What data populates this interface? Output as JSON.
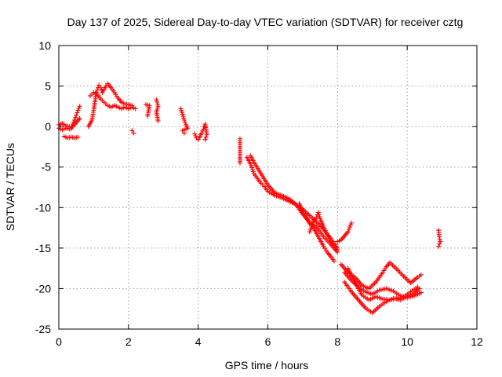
{
  "chart_data": {
    "type": "scatter",
    "title": "Day 137 of 2025, Sidereal Day-to-day VTEC variation (SDTVAR) for receiver cztg",
    "xlabel": "GPS time / hours",
    "ylabel": "SDTVAR / TECUs",
    "xlim": [
      0,
      12
    ],
    "ylim": [
      -25,
      10
    ],
    "xticks": [
      0,
      2,
      4,
      6,
      8,
      10,
      12
    ],
    "yticks": [
      -25,
      -20,
      -15,
      -10,
      -5,
      0,
      5,
      10
    ],
    "grid": true,
    "marker": "+",
    "color": "#ff0000",
    "series": [
      {
        "name": "SDTVAR",
        "segments": [
          [
            [
              0.0,
              0.2
            ],
            [
              0.1,
              0.4
            ],
            [
              0.2,
              0.1
            ],
            [
              0.3,
              0.0
            ],
            [
              0.35,
              -0.3
            ],
            [
              0.4,
              0.3
            ],
            [
              0.45,
              0.8
            ],
            [
              0.5,
              1.4
            ],
            [
              0.55,
              2.0
            ],
            [
              0.6,
              2.5
            ]
          ],
          [
            [
              0.0,
              -0.2
            ],
            [
              0.1,
              -0.4
            ],
            [
              0.2,
              -0.2
            ],
            [
              0.3,
              -0.3
            ],
            [
              0.4,
              0.0
            ],
            [
              0.5,
              0.5
            ],
            [
              0.6,
              1.0
            ]
          ],
          [
            [
              0.15,
              -1.2
            ],
            [
              0.25,
              -1.4
            ],
            [
              0.35,
              -1.3
            ],
            [
              0.45,
              -1.4
            ],
            [
              0.55,
              -1.3
            ]
          ],
          [
            [
              0.85,
              0.0
            ],
            [
              0.95,
              0.8
            ],
            [
              1.0,
              2.0
            ],
            [
              1.05,
              3.5
            ],
            [
              1.1,
              4.5
            ],
            [
              1.15,
              5.1
            ],
            [
              1.2,
              4.8
            ],
            [
              1.25,
              4.2
            ],
            [
              1.3,
              4.6
            ],
            [
              1.35,
              5.0
            ],
            [
              1.4,
              5.3
            ],
            [
              1.5,
              4.8
            ],
            [
              1.6,
              4.2
            ],
            [
              1.7,
              3.5
            ],
            [
              1.8,
              3.0
            ],
            [
              1.9,
              2.8
            ],
            [
              2.0,
              2.7
            ],
            [
              2.1,
              2.6
            ]
          ],
          [
            [
              0.9,
              3.8
            ],
            [
              1.0,
              4.2
            ],
            [
              1.1,
              4.0
            ],
            [
              1.2,
              3.4
            ],
            [
              1.3,
              3.0
            ],
            [
              1.4,
              2.6
            ],
            [
              1.5,
              2.4
            ],
            [
              1.6,
              2.6
            ],
            [
              1.7,
              2.4
            ],
            [
              1.8,
              2.2
            ],
            [
              1.9,
              2.4
            ],
            [
              2.0,
              2.2
            ],
            [
              2.1,
              2.4
            ],
            [
              2.2,
              2.2
            ]
          ],
          [
            [
              2.1,
              -0.5
            ],
            [
              2.15,
              -0.8
            ]
          ],
          [
            [
              2.5,
              2.7
            ],
            [
              2.6,
              2.6
            ],
            [
              2.55,
              1.3
            ]
          ],
          [
            [
              2.8,
              3.3
            ],
            [
              2.85,
              2.5
            ],
            [
              2.8,
              1.8
            ],
            [
              2.85,
              0.7
            ]
          ],
          [
            [
              3.5,
              2.2
            ],
            [
              3.55,
              1.5
            ],
            [
              3.6,
              0.8
            ],
            [
              3.65,
              0.2
            ],
            [
              3.7,
              -0.2
            ],
            [
              3.55,
              -0.5
            ],
            [
              3.6,
              -0.8
            ]
          ],
          [
            [
              3.9,
              -0.9
            ],
            [
              3.95,
              -1.4
            ],
            [
              4.0,
              -1.6
            ],
            [
              4.05,
              -1.2
            ],
            [
              4.1,
              -0.8
            ],
            [
              4.15,
              -0.3
            ],
            [
              4.2,
              0.3
            ],
            [
              4.25,
              -1.0
            ],
            [
              4.2,
              -1.6
            ]
          ],
          [
            [
              5.2,
              -1.5
            ],
            [
              5.2,
              -2.5
            ],
            [
              5.2,
              -3.2
            ],
            [
              5.2,
              -4.5
            ]
          ],
          [
            [
              5.4,
              -3.8
            ],
            [
              5.5,
              -4.6
            ],
            [
              5.6,
              -5.8
            ],
            [
              5.7,
              -6.4
            ],
            [
              5.8,
              -7.0
            ],
            [
              5.9,
              -7.4
            ],
            [
              6.0,
              -8.0
            ],
            [
              6.2,
              -8.5
            ],
            [
              6.4,
              -8.8
            ],
            [
              6.6,
              -9.2
            ],
            [
              6.8,
              -9.6
            ],
            [
              7.0,
              -10.2
            ],
            [
              7.2,
              -11.0
            ],
            [
              7.4,
              -11.8
            ],
            [
              7.6,
              -12.7
            ],
            [
              7.8,
              -13.8
            ],
            [
              8.0,
              -15.0
            ]
          ],
          [
            [
              5.5,
              -3.6
            ],
            [
              5.6,
              -4.4
            ],
            [
              5.8,
              -5.8
            ],
            [
              6.0,
              -7.2
            ],
            [
              6.2,
              -8.2
            ],
            [
              6.4,
              -8.5
            ],
            [
              6.6,
              -8.9
            ],
            [
              6.8,
              -9.6
            ],
            [
              7.0,
              -10.8
            ],
            [
              7.2,
              -11.8
            ],
            [
              7.4,
              -12.4
            ],
            [
              7.6,
              -13.6
            ],
            [
              7.8,
              -14.5
            ],
            [
              8.0,
              -15.5
            ]
          ],
          [
            [
              6.9,
              -9.5
            ],
            [
              7.0,
              -10.5
            ],
            [
              7.1,
              -11.2
            ],
            [
              7.2,
              -12.0
            ],
            [
              7.3,
              -12.4
            ],
            [
              7.4,
              -13.2
            ],
            [
              7.5,
              -14.0
            ],
            [
              7.6,
              -14.8
            ],
            [
              7.7,
              -15.5
            ],
            [
              7.8,
              -16.0
            ],
            [
              7.9,
              -16.6
            ]
          ],
          [
            [
              7.2,
              -13.0
            ],
            [
              7.3,
              -11.8
            ],
            [
              7.4,
              -11.2
            ],
            [
              7.45,
              -10.6
            ],
            [
              7.5,
              -11.4
            ],
            [
              7.6,
              -12.4
            ],
            [
              7.7,
              -13.3
            ],
            [
              7.8,
              -14.0
            ],
            [
              7.9,
              -14.6
            ],
            [
              8.0,
              -15.2
            ]
          ],
          [
            [
              8.0,
              -14.2
            ],
            [
              8.1,
              -14.0
            ],
            [
              8.2,
              -13.5
            ],
            [
              8.3,
              -13.0
            ],
            [
              8.35,
              -12.4
            ],
            [
              8.4,
              -11.9
            ]
          ],
          [
            [
              8.1,
              -17.0
            ],
            [
              8.3,
              -18.0
            ],
            [
              8.5,
              -18.6
            ],
            [
              8.7,
              -19.6
            ],
            [
              8.9,
              -20.0
            ],
            [
              9.1,
              -19.2
            ],
            [
              9.3,
              -18.0
            ],
            [
              9.4,
              -17.3
            ],
            [
              9.5,
              -16.8
            ],
            [
              9.7,
              -17.6
            ],
            [
              9.9,
              -18.5
            ],
            [
              10.1,
              -19.3
            ],
            [
              10.3,
              -18.6
            ],
            [
              10.4,
              -18.3
            ]
          ],
          [
            [
              8.2,
              -18.0
            ],
            [
              8.4,
              -19.0
            ],
            [
              8.6,
              -19.8
            ],
            [
              8.8,
              -20.4
            ],
            [
              9.0,
              -20.7
            ],
            [
              9.2,
              -20.2
            ],
            [
              9.4,
              -20.0
            ],
            [
              9.6,
              -20.3
            ],
            [
              9.8,
              -20.9
            ],
            [
              10.0,
              -21.1
            ],
            [
              10.2,
              -20.9
            ],
            [
              10.4,
              -20.5
            ]
          ],
          [
            [
              8.2,
              -19.2
            ],
            [
              8.4,
              -20.4
            ],
            [
              8.6,
              -21.4
            ],
            [
              8.8,
              -22.4
            ],
            [
              9.0,
              -23.0
            ],
            [
              9.2,
              -22.2
            ],
            [
              9.4,
              -21.6
            ],
            [
              9.6,
              -21.2
            ],
            [
              9.8,
              -21.4
            ],
            [
              10.0,
              -21.0
            ],
            [
              10.2,
              -20.6
            ],
            [
              10.35,
              -20.0
            ]
          ],
          [
            [
              8.3,
              -17.5
            ],
            [
              8.5,
              -19.2
            ],
            [
              8.7,
              -20.8
            ],
            [
              8.9,
              -21.4
            ],
            [
              9.1,
              -21.0
            ],
            [
              9.3,
              -21.3
            ],
            [
              9.5,
              -21.4
            ],
            [
              9.7,
              -21.2
            ],
            [
              9.9,
              -21.0
            ],
            [
              10.1,
              -20.4
            ],
            [
              10.3,
              -19.8
            ]
          ],
          [
            [
              10.9,
              -12.8
            ],
            [
              10.92,
              -13.6
            ],
            [
              10.95,
              -14.2
            ],
            [
              10.9,
              -14.8
            ]
          ]
        ]
      }
    ]
  }
}
